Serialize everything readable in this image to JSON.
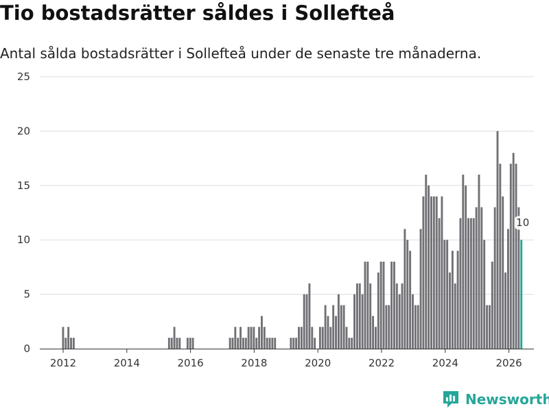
{
  "title": "Tio bostadsrätter såldes i Sollefteå",
  "subtitle": "Antal sålda bostadsrätter i Sollefteå under de senaste tre månaderna.",
  "brand": "Newsworthy",
  "colors": {
    "bar": "#707075",
    "highlight": "#26a69a",
    "grid": "#dddddd"
  },
  "chart_data": {
    "type": "bar",
    "title": "Tio bostadsrätter såldes i Sollefteå",
    "xlabel": "",
    "ylabel": "",
    "ylim": [
      0,
      25
    ],
    "yticks": [
      0,
      5,
      10,
      15,
      20,
      25
    ],
    "xticks": [
      "2012",
      "2014",
      "2016",
      "2018",
      "2020",
      "2022",
      "2024",
      "2026"
    ],
    "series": [
      {
        "name": "Antal sålda bostadsrätter",
        "start": "2011-12",
        "values": [
          2,
          1,
          2,
          1,
          1,
          0,
          0,
          0,
          0,
          0,
          0,
          0,
          0,
          0,
          0,
          0,
          0,
          0,
          0,
          0,
          0,
          0,
          0,
          0,
          0,
          0,
          0,
          0,
          0,
          0,
          0,
          0,
          0,
          0,
          0,
          0,
          0,
          0,
          0,
          0,
          1,
          1,
          2,
          1,
          1,
          0,
          0,
          1,
          1,
          1,
          0,
          0,
          0,
          0,
          0,
          0,
          0,
          0,
          0,
          0,
          0,
          0,
          0,
          1,
          1,
          2,
          1,
          2,
          1,
          1,
          2,
          2,
          2,
          1,
          2,
          3,
          2,
          1,
          1,
          1,
          1,
          0,
          0,
          0,
          0,
          0,
          1,
          1,
          1,
          2,
          2,
          5,
          5,
          6,
          2,
          1,
          0,
          2,
          2,
          4,
          3,
          2,
          4,
          3,
          5,
          4,
          4,
          2,
          1,
          1,
          5,
          6,
          6,
          5,
          8,
          8,
          6,
          3,
          2,
          7,
          8,
          8,
          4,
          4,
          8,
          8,
          6,
          5,
          6,
          11,
          10,
          9,
          5,
          4,
          4,
          11,
          14,
          16,
          15,
          14,
          14,
          14,
          12,
          14,
          10,
          10,
          7,
          9,
          6,
          9,
          12,
          16,
          15,
          12,
          12,
          12,
          13,
          16,
          13,
          10,
          4,
          4,
          8,
          13,
          20,
          17,
          14,
          7,
          11,
          17,
          18,
          17,
          13,
          10
        ]
      }
    ],
    "highlight": {
      "label": "10",
      "value": 10,
      "last": true
    }
  }
}
